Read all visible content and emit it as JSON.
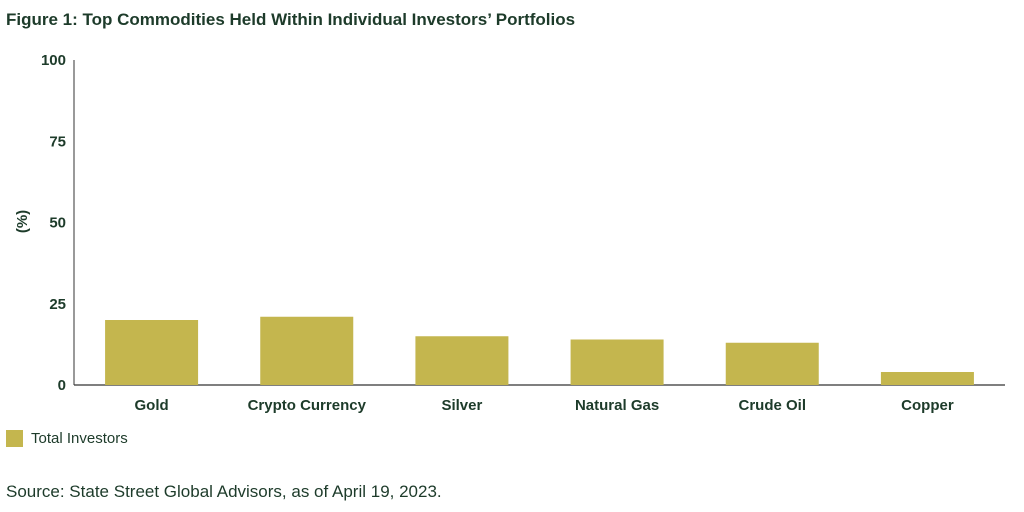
{
  "title": "Figure 1: Top Commodities Held Within Individual Investors’ Portfolios",
  "source": "Source: State Street Global Advisors, as of April 19, 2023.",
  "colors": {
    "bar": "#c4b64e",
    "text": "#1d3b2a",
    "axis": "#333333"
  },
  "chart_data": {
    "type": "bar",
    "title": "Figure 1: Top Commodities Held Within Individual Investors’ Portfolios",
    "categories": [
      "Gold",
      "Crypto Currency",
      "Silver",
      "Natural Gas",
      "Crude Oil",
      "Copper"
    ],
    "series": [
      {
        "name": "Total Investors",
        "values": [
          20,
          21,
          15,
          14,
          13,
          4
        ]
      }
    ],
    "xlabel": "",
    "ylabel": "(%)",
    "ylim": [
      0,
      100
    ],
    "yticks": [
      0,
      25,
      50,
      75,
      100
    ],
    "grid": false,
    "legend": "bottom-left"
  }
}
